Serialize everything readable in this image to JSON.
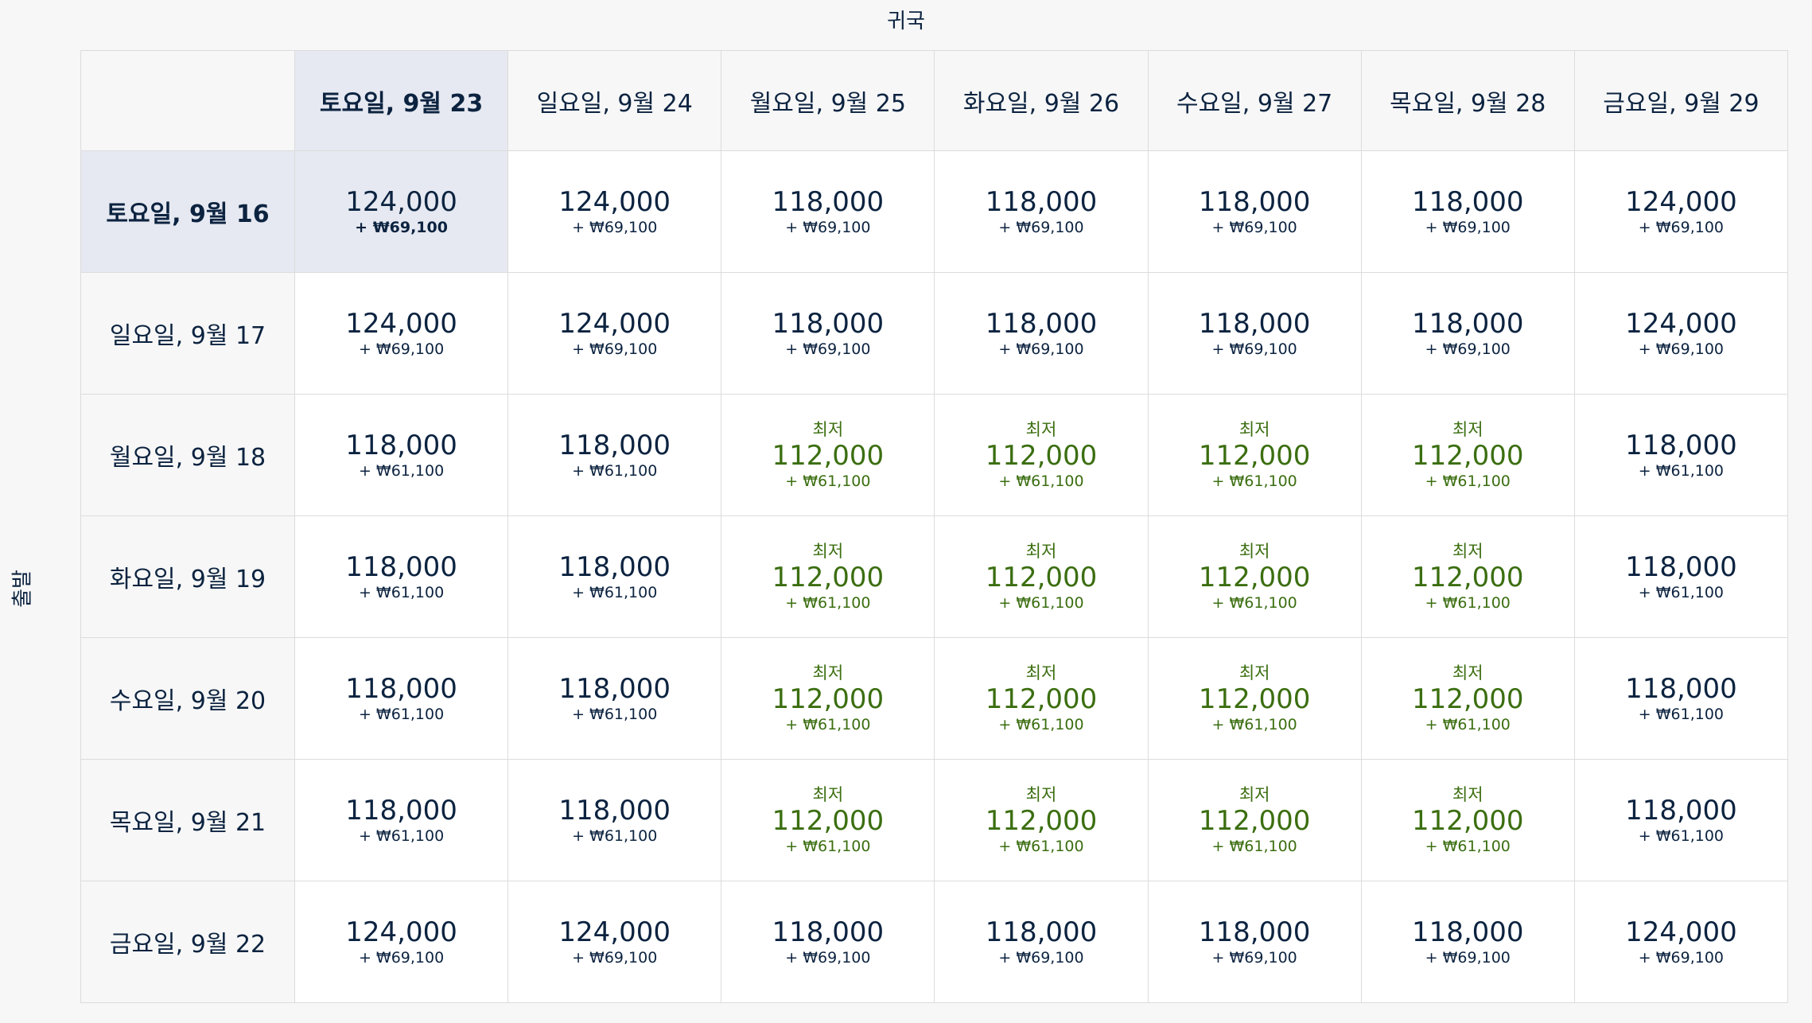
{
  "labels": {
    "return": "귀국",
    "depart": "출발"
  },
  "columns": [
    "토요일, 9월 23",
    "일요일, 9월 24",
    "월요일, 9월 25",
    "화요일, 9월 26",
    "수요일, 9월 27",
    "목요일, 9월 28",
    "금요일, 9월 29"
  ],
  "selected": {
    "row": 0,
    "col": 0
  },
  "rows": [
    {
      "label": "토요일, 9월 16",
      "cells": [
        {
          "price": "124,000",
          "tax": "+ ₩69,100"
        },
        {
          "price": "124,000",
          "tax": "+ ₩69,100"
        },
        {
          "price": "118,000",
          "tax": "+ ₩69,100"
        },
        {
          "price": "118,000",
          "tax": "+ ₩69,100"
        },
        {
          "price": "118,000",
          "tax": "+ ₩69,100"
        },
        {
          "price": "118,000",
          "tax": "+ ₩69,100"
        },
        {
          "price": "124,000",
          "tax": "+ ₩69,100"
        }
      ]
    },
    {
      "label": "일요일, 9월 17",
      "cells": [
        {
          "price": "124,000",
          "tax": "+ ₩69,100"
        },
        {
          "price": "124,000",
          "tax": "+ ₩69,100"
        },
        {
          "price": "118,000",
          "tax": "+ ₩69,100"
        },
        {
          "price": "118,000",
          "tax": "+ ₩69,100"
        },
        {
          "price": "118,000",
          "tax": "+ ₩69,100"
        },
        {
          "price": "118,000",
          "tax": "+ ₩69,100"
        },
        {
          "price": "124,000",
          "tax": "+ ₩69,100"
        }
      ]
    },
    {
      "label": "월요일, 9월 18",
      "cells": [
        {
          "price": "118,000",
          "tax": "+ ₩61,100"
        },
        {
          "price": "118,000",
          "tax": "+ ₩61,100"
        },
        {
          "low": "최저",
          "price": "112,000",
          "tax": "+ ₩61,100"
        },
        {
          "low": "최저",
          "price": "112,000",
          "tax": "+ ₩61,100"
        },
        {
          "low": "최저",
          "price": "112,000",
          "tax": "+ ₩61,100"
        },
        {
          "low": "최저",
          "price": "112,000",
          "tax": "+ ₩61,100"
        },
        {
          "price": "118,000",
          "tax": "+ ₩61,100"
        }
      ]
    },
    {
      "label": "화요일, 9월 19",
      "cells": [
        {
          "price": "118,000",
          "tax": "+ ₩61,100"
        },
        {
          "price": "118,000",
          "tax": "+ ₩61,100"
        },
        {
          "low": "최저",
          "price": "112,000",
          "tax": "+ ₩61,100"
        },
        {
          "low": "최저",
          "price": "112,000",
          "tax": "+ ₩61,100"
        },
        {
          "low": "최저",
          "price": "112,000",
          "tax": "+ ₩61,100"
        },
        {
          "low": "최저",
          "price": "112,000",
          "tax": "+ ₩61,100"
        },
        {
          "price": "118,000",
          "tax": "+ ₩61,100"
        }
      ]
    },
    {
      "label": "수요일, 9월 20",
      "cells": [
        {
          "price": "118,000",
          "tax": "+ ₩61,100"
        },
        {
          "price": "118,000",
          "tax": "+ ₩61,100"
        },
        {
          "low": "최저",
          "price": "112,000",
          "tax": "+ ₩61,100"
        },
        {
          "low": "최저",
          "price": "112,000",
          "tax": "+ ₩61,100"
        },
        {
          "low": "최저",
          "price": "112,000",
          "tax": "+ ₩61,100"
        },
        {
          "low": "최저",
          "price": "112,000",
          "tax": "+ ₩61,100"
        },
        {
          "price": "118,000",
          "tax": "+ ₩61,100"
        }
      ]
    },
    {
      "label": "목요일, 9월 21",
      "cells": [
        {
          "price": "118,000",
          "tax": "+ ₩61,100"
        },
        {
          "price": "118,000",
          "tax": "+ ₩61,100"
        },
        {
          "low": "최저",
          "price": "112,000",
          "tax": "+ ₩61,100"
        },
        {
          "low": "최저",
          "price": "112,000",
          "tax": "+ ₩61,100"
        },
        {
          "low": "최저",
          "price": "112,000",
          "tax": "+ ₩61,100"
        },
        {
          "low": "최저",
          "price": "112,000",
          "tax": "+ ₩61,100"
        },
        {
          "price": "118,000",
          "tax": "+ ₩61,100"
        }
      ]
    },
    {
      "label": "금요일, 9월 22",
      "cells": [
        {
          "price": "124,000",
          "tax": "+ ₩69,100"
        },
        {
          "price": "124,000",
          "tax": "+ ₩69,100"
        },
        {
          "price": "118,000",
          "tax": "+ ₩69,100"
        },
        {
          "price": "118,000",
          "tax": "+ ₩69,100"
        },
        {
          "price": "118,000",
          "tax": "+ ₩69,100"
        },
        {
          "price": "118,000",
          "tax": "+ ₩69,100"
        },
        {
          "price": "124,000",
          "tax": "+ ₩69,100"
        }
      ]
    }
  ]
}
